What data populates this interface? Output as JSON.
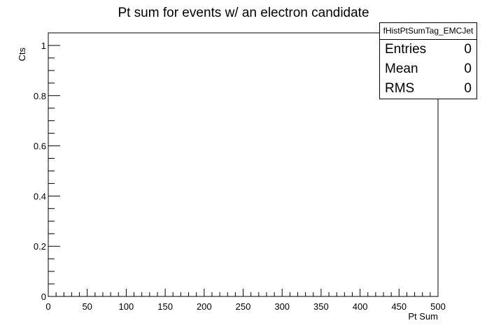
{
  "chart_data": {
    "type": "bar",
    "title": "Pt sum for events w/ an electron candidate",
    "xlabel": "Pt Sum",
    "ylabel": "Cts",
    "xlim": [
      0,
      500
    ],
    "ylim": [
      0,
      1.05
    ],
    "x_ticks": [
      "0",
      "50",
      "100",
      "150",
      "200",
      "250",
      "300",
      "350",
      "400",
      "450",
      "500"
    ],
    "y_ticks": [
      "0",
      "0.2",
      "0.4",
      "0.6",
      "0.8",
      "1"
    ],
    "values": [],
    "grid": false,
    "legend": "top-right"
  },
  "stats": {
    "name": "fHistPtSumTag_EMCJet",
    "entries_label": "Entries",
    "entries": "0",
    "mean_label": "Mean",
    "mean": "0",
    "rms_label": "RMS",
    "rms": "0"
  }
}
